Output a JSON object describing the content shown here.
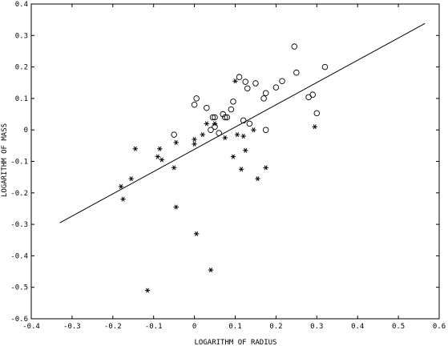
{
  "chart_data": {
    "type": "scatter",
    "title": "",
    "xlabel": "LOGARITHM OF RADIUS",
    "ylabel": "LOGARITHM OF MASS",
    "xlim": [
      -0.4,
      0.6
    ],
    "ylim": [
      -0.6,
      0.4
    ],
    "x_ticks": [
      -0.4,
      -0.3,
      -0.2,
      -0.1,
      0,
      0.1,
      0.2,
      0.3,
      0.4,
      0.5,
      0.6
    ],
    "x_tick_labels": [
      "-0.4",
      "-0.3",
      "-0.2",
      "-0.1",
      "0",
      "0.1",
      "0.2",
      "0.3",
      "0.4",
      "0.5",
      "0.6"
    ],
    "y_ticks": [
      -0.6,
      -0.5,
      -0.4,
      -0.3,
      -0.2,
      -0.1,
      0,
      0.1,
      0.2,
      0.3,
      0.4
    ],
    "y_tick_labels": [
      "-0.6",
      "-0.5",
      "-0.4",
      "-0.3",
      "-0.2",
      "-0.1",
      "0",
      "0.1",
      "0.2",
      "0.3",
      "0.4"
    ],
    "grid": false,
    "legend": "none",
    "series": [
      {
        "marker": "circle",
        "points": [
          [
            -0.05,
            -0.015
          ],
          [
            0.0,
            0.08
          ],
          [
            0.005,
            0.1
          ],
          [
            0.03,
            0.07
          ],
          [
            0.04,
            0.0
          ],
          [
            0.045,
            0.04
          ],
          [
            0.05,
            0.04
          ],
          [
            0.05,
            0.01
          ],
          [
            0.06,
            -0.01
          ],
          [
            0.07,
            0.05
          ],
          [
            0.075,
            0.04
          ],
          [
            0.08,
            0.04
          ],
          [
            0.09,
            0.065
          ],
          [
            0.095,
            0.09
          ],
          [
            0.11,
            0.168
          ],
          [
            0.12,
            0.03
          ],
          [
            0.125,
            0.153
          ],
          [
            0.13,
            0.132
          ],
          [
            0.135,
            0.02
          ],
          [
            0.15,
            0.148
          ],
          [
            0.17,
            0.1
          ],
          [
            0.175,
            0.117
          ],
          [
            0.175,
            0.0
          ],
          [
            0.2,
            0.135
          ],
          [
            0.215,
            0.155
          ],
          [
            0.245,
            0.265
          ],
          [
            0.25,
            0.182
          ],
          [
            0.28,
            0.104
          ],
          [
            0.29,
            0.112
          ],
          [
            0.3,
            0.053
          ],
          [
            0.32,
            0.2
          ]
        ]
      },
      {
        "marker": "star",
        "points": [
          [
            -0.18,
            -0.18
          ],
          [
            -0.175,
            -0.22
          ],
          [
            -0.155,
            -0.155
          ],
          [
            -0.145,
            -0.06
          ],
          [
            -0.115,
            -0.51
          ],
          [
            -0.09,
            -0.085
          ],
          [
            -0.08,
            -0.095
          ],
          [
            -0.085,
            -0.06
          ],
          [
            -0.05,
            -0.12
          ],
          [
            -0.045,
            -0.04
          ],
          [
            -0.045,
            -0.245
          ],
          [
            0.0,
            -0.03
          ],
          [
            0.0,
            -0.045
          ],
          [
            0.005,
            -0.33
          ],
          [
            0.02,
            -0.015
          ],
          [
            0.03,
            0.02
          ],
          [
            0.04,
            -0.445
          ],
          [
            0.05,
            0.02
          ],
          [
            0.075,
            -0.025
          ],
          [
            0.095,
            -0.085
          ],
          [
            0.1,
            0.155
          ],
          [
            0.105,
            -0.015
          ],
          [
            0.115,
            -0.125
          ],
          [
            0.12,
            -0.02
          ],
          [
            0.125,
            -0.065
          ],
          [
            0.145,
            0.0
          ],
          [
            0.155,
            -0.155
          ],
          [
            0.175,
            -0.12
          ],
          [
            0.295,
            0.01
          ]
        ]
      }
    ],
    "fit_line": {
      "x": [
        -0.33,
        0.565
      ],
      "y": [
        -0.295,
        0.338
      ]
    }
  }
}
